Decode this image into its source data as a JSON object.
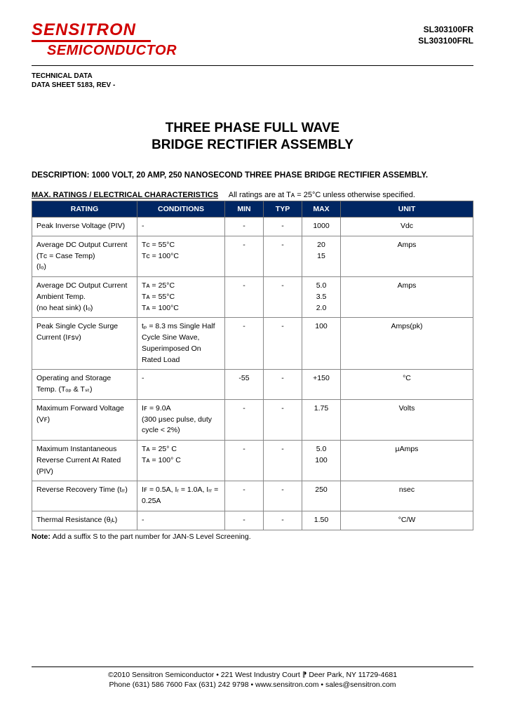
{
  "header": {
    "logo_line1": "SENSITRON",
    "logo_line2": "SEMICONDUCTOR",
    "part1": "SL303100FR",
    "part2": "SL303100FRL",
    "tech1": "TECHNICAL DATA",
    "tech2": "DATA SHEET 5183, REV -"
  },
  "title": {
    "line1": "THREE PHASE FULL WAVE",
    "line2": "BRIDGE RECTIFIER ASSEMBLY"
  },
  "description": "DESCRIPTION: 1000 VOLT, 20 AMP, 250 NANOSECOND THREE PHASE BRIDGE RECTIFIER ASSEMBLY.",
  "max_ratings": {
    "label": "MAX. RATINGS / ELECTRICAL CHARACTERISTICS",
    "note": "All ratings are at Tᴀ = 25°C unless otherwise specified."
  },
  "table": {
    "header_bg": "#002663",
    "header_fg": "#ffffff",
    "border_color": "#888888",
    "columns": [
      "RATING",
      "CONDITIONS",
      "MIN",
      "TYP",
      "MAX",
      "UNIT"
    ],
    "rows": [
      {
        "r": "Peak Inverse Voltage (PIV)",
        "c": "-",
        "min": "-",
        "typ": "-",
        "max": "1000",
        "u": "Vdc"
      },
      {
        "r": "Average DC Output Current (Tᴄ = Case Temp)\n(Iₒ)",
        "c": "Tᴄ = 55°C\nTᴄ = 100°C",
        "min": "-",
        "typ": "-",
        "max": "20\n15",
        "u": "Amps"
      },
      {
        "r": "Average DC Output Current Ambient Temp.\n(no heat sink)  (Iₒ)",
        "c": "Tᴀ = 25°C\nTᴀ = 55°C\nTᴀ = 100°C",
        "min": "-",
        "typ": "-",
        "max": "5.0\n3.5\n2.0",
        "u": "Amps"
      },
      {
        "r": "Peak Single Cycle Surge Current (Iꜰꜱᴠ)",
        "c": "tₚ = 8.3 ms Single Half Cycle Sine Wave, Superimposed On Rated Load",
        "min": "-",
        "typ": "-",
        "max": "100",
        "u": "Amps(pk)"
      },
      {
        "r": "Operating and Storage Temp. (Tₒₚ & Tₛₜ)",
        "c": "-",
        "min": "-55",
        "typ": "-",
        "max": "+150",
        "u": "°C"
      },
      {
        "r": "Maximum Forward Voltage (Vꜰ)",
        "c": "Iꜰ = 9.0A\n(300 μsec pulse, duty cycle < 2%)",
        "min": "-",
        "typ": "-",
        "max": "1.75",
        "u": "Volts"
      },
      {
        "r": "Maximum Instantaneous Reverse Current At Rated (PIV)",
        "c": "Tᴀ = 25° C\nTᴀ = 100° C",
        "min": "-",
        "typ": "-",
        "max": "5.0\n100",
        "u": "μAmps"
      },
      {
        "r": "Reverse Recovery Time (tᵣᵣ)",
        "c": "Iꜰ = 0.5A, Iᵣ = 1.0A, Iᵣᵣ = 0.25A",
        "min": "-",
        "typ": "-",
        "max": "250",
        "u": "nsec"
      },
      {
        "r": "Thermal Resistance (θⱼʟ)",
        "c": "-",
        "min": "-",
        "typ": "-",
        "max": "1.50",
        "u": "°C/W"
      }
    ]
  },
  "note_prefix": "Note: ",
  "note_body": "Add a suffix S to the part number for JAN-S Level Screening.",
  "footer": {
    "line1": "©2010 Sensitron Semiconductor • 221 West Industry Court ⁋ Deer Park, NY 11729-4681",
    "line2": "Phone (631) 586 7600 Fax (631) 242 9798 • www.sensitron.com • sales@sensitron.com"
  }
}
